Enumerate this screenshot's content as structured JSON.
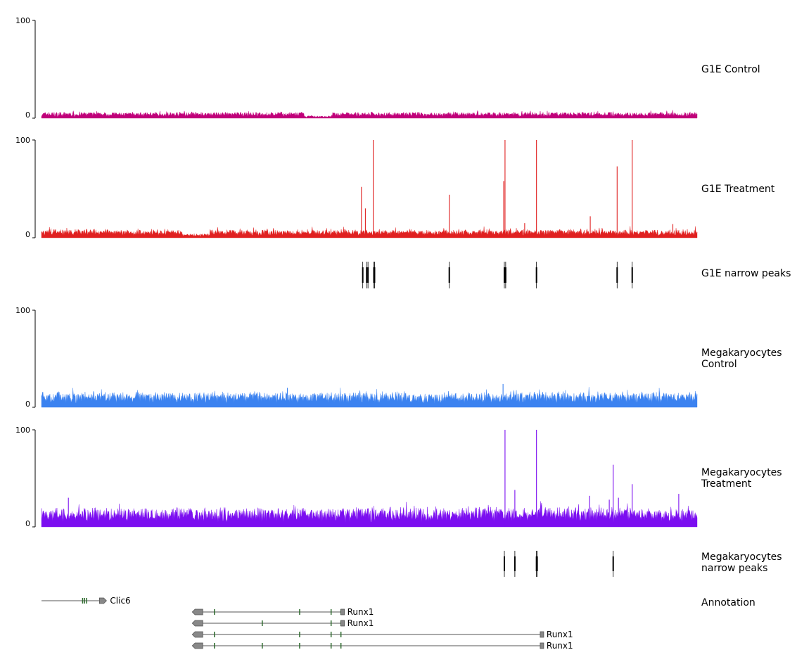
{
  "chart_data": {
    "type": "genome-browser-tracks",
    "tracks": [
      {
        "kind": "signal",
        "name": "G1E Control",
        "color": "#c0007a",
        "ylim": [
          0,
          100
        ],
        "yticks": [
          "100",
          "0"
        ],
        "base_level": 4,
        "noise": 3,
        "peaks": []
      },
      {
        "kind": "signal",
        "name": "G1E Treatment",
        "color": "#e02020",
        "ylim": [
          0,
          100
        ],
        "yticks": [
          "100",
          "0"
        ],
        "base_level": 5,
        "noise": 6,
        "peaks": [
          {
            "x": 0.488,
            "y": 52
          },
          {
            "x": 0.494,
            "y": 30
          },
          {
            "x": 0.506,
            "y": 100
          },
          {
            "x": 0.622,
            "y": 44
          },
          {
            "x": 0.705,
            "y": 58
          },
          {
            "x": 0.707,
            "y": 100
          },
          {
            "x": 0.737,
            "y": 15
          },
          {
            "x": 0.755,
            "y": 100
          },
          {
            "x": 0.837,
            "y": 22
          },
          {
            "x": 0.878,
            "y": 73
          },
          {
            "x": 0.901,
            "y": 100
          },
          {
            "x": 0.963,
            "y": 14
          }
        ]
      },
      {
        "kind": "peaks",
        "name": "G1E narrow peaks",
        "color": "#000000",
        "peaks": [
          0.49,
          0.496,
          0.498,
          0.507,
          0.508,
          0.622,
          0.706,
          0.708,
          0.755,
          0.878,
          0.901
        ]
      },
      {
        "kind": "signal",
        "name": "Megakaryocytes\nControl",
        "color": "#3b82f0",
        "ylim": [
          0,
          100
        ],
        "yticks": [
          "100",
          "0"
        ],
        "base_level": 10,
        "noise": 8,
        "peaks": [
          {
            "x": 0.704,
            "y": 24
          },
          {
            "x": 0.375,
            "y": 20
          }
        ]
      },
      {
        "kind": "signal",
        "name": "Megakaryocytes\nTreatment",
        "color": "#7b0ef0",
        "ylim": [
          0,
          100
        ],
        "yticks": [
          "100",
          "0"
        ],
        "base_level": 12,
        "noise": 12,
        "peaks": [
          {
            "x": 0.041,
            "y": 30
          },
          {
            "x": 0.707,
            "y": 100
          },
          {
            "x": 0.722,
            "y": 38
          },
          {
            "x": 0.755,
            "y": 100
          },
          {
            "x": 0.836,
            "y": 32
          },
          {
            "x": 0.866,
            "y": 28
          },
          {
            "x": 0.872,
            "y": 64
          },
          {
            "x": 0.88,
            "y": 30
          },
          {
            "x": 0.901,
            "y": 44
          },
          {
            "x": 0.972,
            "y": 34
          }
        ]
      },
      {
        "kind": "peaks",
        "name": "Megakaryocytes\nnarrow peaks",
        "color": "#000000",
        "peaks": [
          0.706,
          0.722,
          0.755,
          0.756,
          0.872
        ]
      },
      {
        "kind": "annotation",
        "name": "Annotation",
        "genes": [
          {
            "label": "Clic6",
            "start": 0.0,
            "end": 0.097,
            "strand": "+",
            "exons": [
              0.063,
              0.066,
              0.069
            ]
          },
          {
            "label": "Runx1",
            "start": 0.231,
            "end": 0.462,
            "strand": "-",
            "exons": [
              0.264,
              0.394,
              0.442,
              0.457
            ]
          },
          {
            "label": "Runx1",
            "start": 0.231,
            "end": 0.462,
            "strand": "-",
            "exons": [
              0.337,
              0.442,
              0.457
            ]
          },
          {
            "label": "Runx1",
            "start": 0.231,
            "end": 0.766,
            "strand": "-",
            "exons": [
              0.264,
              0.394,
              0.442,
              0.457
            ]
          },
          {
            "label": "Runx1",
            "start": 0.231,
            "end": 0.766,
            "strand": "-",
            "exons": [
              0.264,
              0.337,
              0.394,
              0.442,
              0.457
            ]
          }
        ]
      }
    ]
  }
}
